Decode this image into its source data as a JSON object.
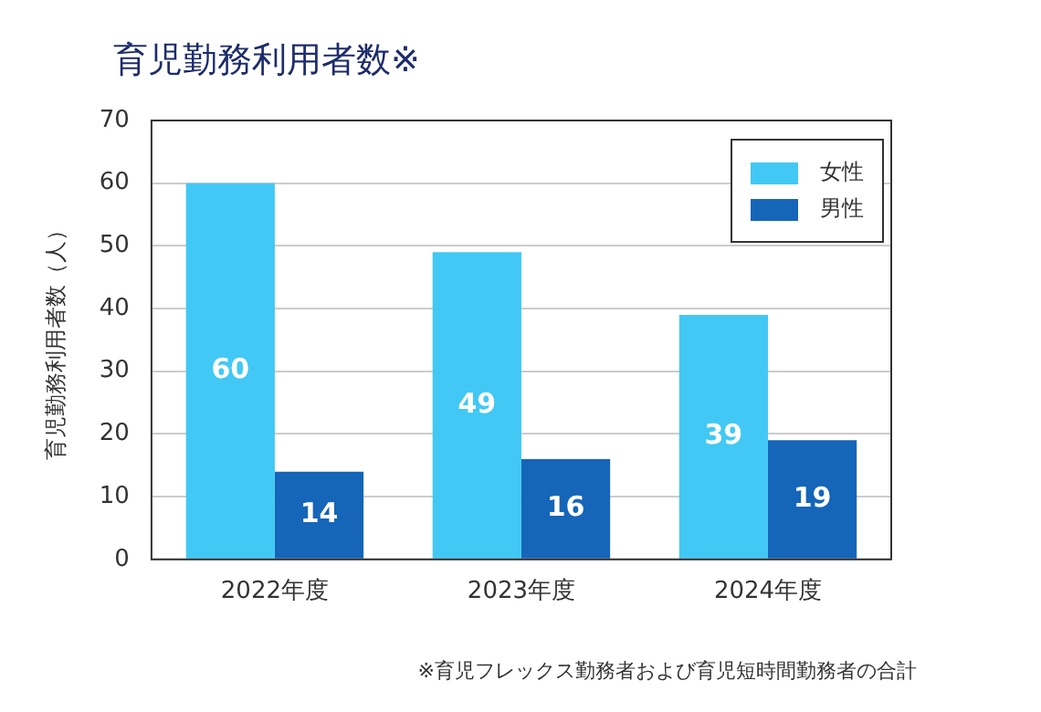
{
  "chart_data": {
    "type": "bar",
    "title": "育児勤務利用者数※",
    "ylabel": "育児勤務利用者数（人）",
    "categories": [
      "2022年度",
      "2023年度",
      "2024年度"
    ],
    "series": [
      {
        "name": "女性",
        "color": "#42c8f4",
        "values": [
          60,
          49,
          39
        ]
      },
      {
        "name": "男性",
        "color": "#1565b8",
        "values": [
          14,
          16,
          19
        ]
      }
    ],
    "ylim": [
      0,
      70
    ],
    "yticks": [
      0,
      10,
      20,
      30,
      40,
      50,
      60,
      70
    ],
    "grid": "y",
    "legend": "top right",
    "data_labels": true,
    "annotations": [
      "※育児フレックス勤務者および育児短時間勤務者の合計"
    ]
  }
}
